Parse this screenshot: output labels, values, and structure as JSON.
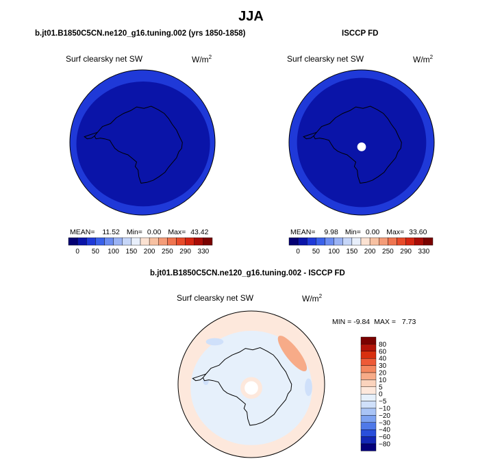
{
  "chart_data": [
    {
      "type": "heatmap",
      "projection": "south-polar-stereographic",
      "season": "JJA",
      "title": "b.jt01.B1850C5CN.ne120_g16.tuning.002 (yrs 1850-1858)",
      "variable": "Surf clearsky net SW",
      "units": "W/m",
      "units_sup": "2",
      "stats": {
        "mean_label": "MEAN=",
        "mean": "11.52",
        "min_label": "Min=",
        "min": "0.00",
        "max_label": "Max=",
        "max": "43.42"
      },
      "colorbar": {
        "ticks": [
          "0",
          "50",
          "100",
          "150",
          "200",
          "250",
          "290",
          "330"
        ],
        "colors": [
          "#040073",
          "#0a14a8",
          "#1f39d8",
          "#3a61ea",
          "#6b8cf0",
          "#9bb3f4",
          "#c6d6f8",
          "#e8effb",
          "#fbe2d2",
          "#f7c1a2",
          "#f49c78",
          "#ef7550",
          "#e84b2a",
          "#d52612",
          "#a90c06",
          "#7a0200"
        ]
      },
      "fields": {
        "ocean_value_range": [
          30,
          43.42
        ],
        "ice_value_range": [
          0,
          20
        ]
      }
    },
    {
      "type": "heatmap",
      "projection": "south-polar-stereographic",
      "title": "ISCCP FD",
      "variable": "Surf clearsky net SW",
      "units": "W/m",
      "units_sup": "2",
      "stats": {
        "mean_label": "MEAN=",
        "mean": "9.98",
        "min_label": "Min=",
        "min": "0.00",
        "max_label": "Max=",
        "max": "33.60"
      },
      "colorbar": {
        "ticks": [
          "0",
          "50",
          "100",
          "150",
          "200",
          "250",
          "290",
          "330"
        ],
        "colors": [
          "#040073",
          "#0a14a8",
          "#1f39d8",
          "#3a61ea",
          "#6b8cf0",
          "#9bb3f4",
          "#c6d6f8",
          "#e8effb",
          "#fbe2d2",
          "#f7c1a2",
          "#f49c78",
          "#ef7550",
          "#e84b2a",
          "#d52612",
          "#a90c06",
          "#7a0200"
        ]
      },
      "fields": {
        "ocean_value_range": [
          25,
          33.6
        ],
        "ice_value_range": [
          0,
          20
        ],
        "missing_at_pole": true
      }
    },
    {
      "type": "heatmap",
      "projection": "south-polar-stereographic",
      "title": "b.jt01.B1850C5CN.ne120_g16.tuning.002 - ISCCP FD",
      "variable": "Surf clearsky net SW",
      "units": "W/m",
      "units_sup": "2",
      "stats": {
        "min_label": "MIN =",
        "min": "-9.84",
        "max_label": "MAX =",
        "max": "7.73"
      },
      "colorbar": {
        "ticks": [
          "80",
          "60",
          "40",
          "30",
          "20",
          "10",
          "5",
          "0",
          "−5",
          "−10",
          "−20",
          "−30",
          "−40",
          "−60",
          "−80"
        ],
        "colors": [
          "#7a0200",
          "#b21408",
          "#d8300f",
          "#ee5a37",
          "#f4875f",
          "#f7ab88",
          "#fad3bd",
          "#fde8dc",
          "#e6f0fb",
          "#cfe0fa",
          "#a9c4f6",
          "#7da2f1",
          "#4f79e8",
          "#2a4fdb",
          "#1327b5",
          "#04007a"
        ]
      }
    }
  ]
}
